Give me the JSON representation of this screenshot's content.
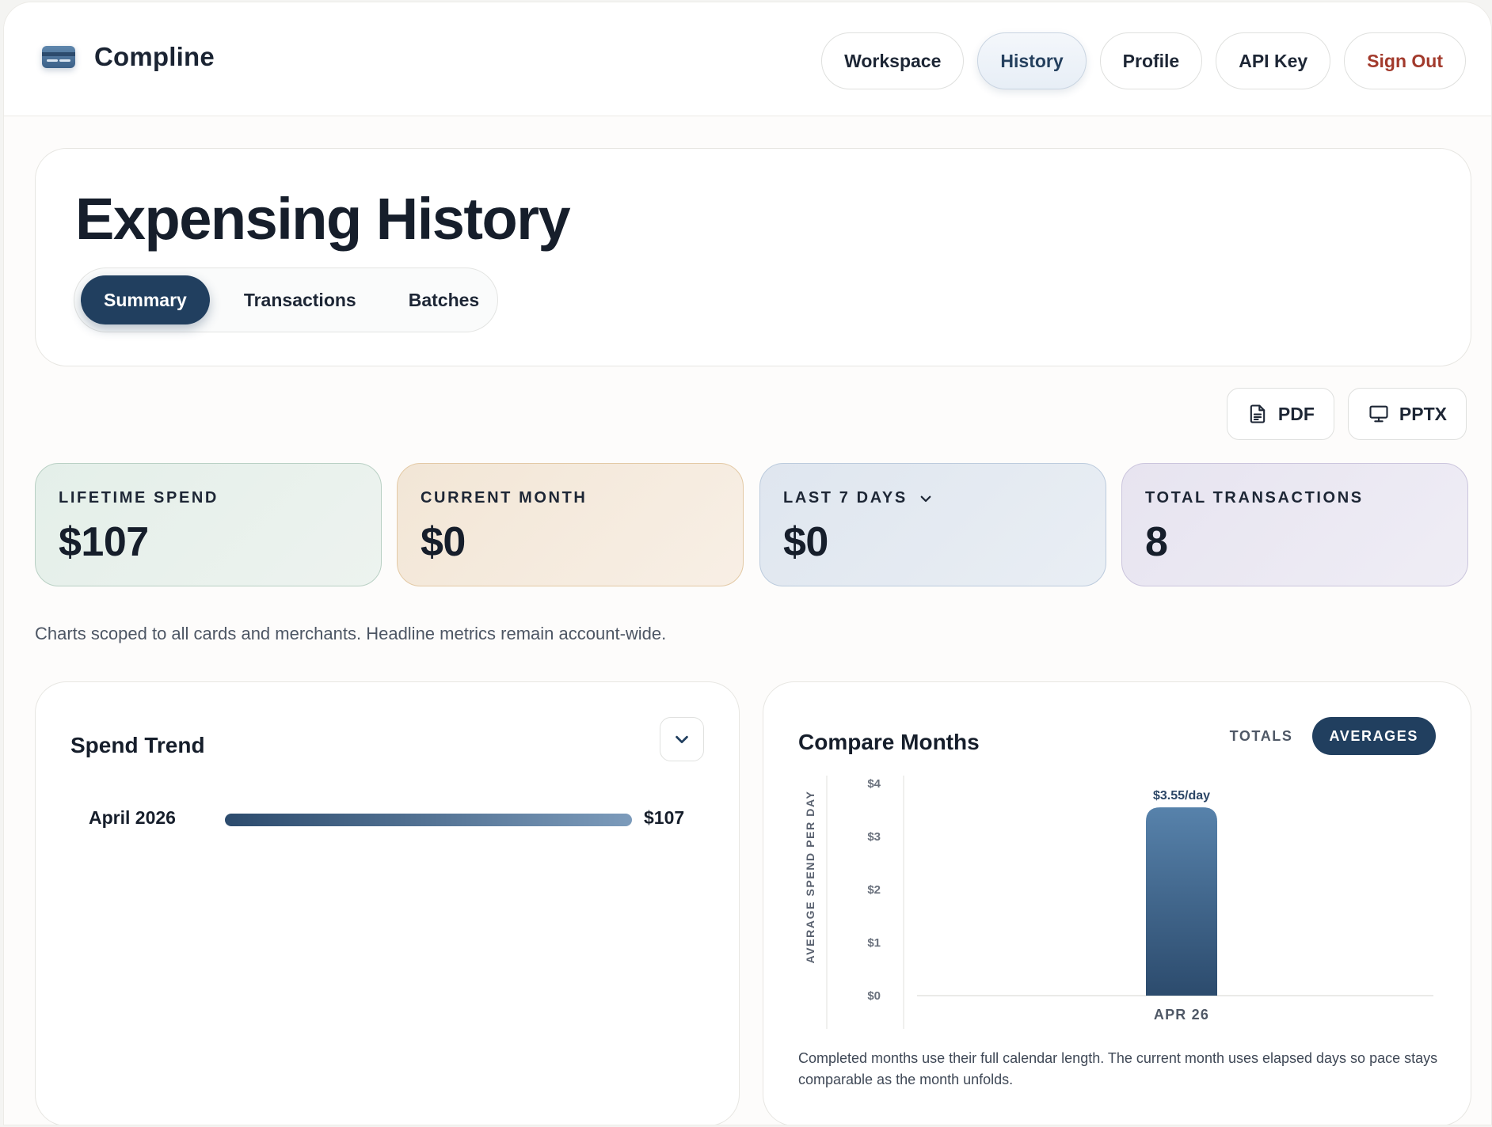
{
  "app": {
    "brand": "Compline",
    "nav": [
      {
        "label": "Workspace"
      },
      {
        "label": "History"
      },
      {
        "label": "Profile"
      },
      {
        "label": "API Key"
      },
      {
        "label": "Sign Out"
      }
    ]
  },
  "page": {
    "title": "Expensing History",
    "tabs": [
      {
        "label": "Summary",
        "active": true
      },
      {
        "label": "Transactions"
      },
      {
        "label": "Batches"
      }
    ],
    "export": {
      "pdf": "PDF",
      "pptx": "PPTX"
    },
    "metrics": [
      {
        "label": "LIFETIME SPEND",
        "value": "$107"
      },
      {
        "label": "CURRENT MONTH",
        "value": "$0"
      },
      {
        "label": "LAST 7 DAYS",
        "value": "$0"
      },
      {
        "label": "TOTAL TRANSACTIONS",
        "value": "8"
      }
    ],
    "note": "Charts scoped to all cards and merchants. Headline metrics remain account-wide."
  },
  "spend_trend": {
    "title": "Spend Trend",
    "rows": [
      {
        "label": "April 2026",
        "value": "$107",
        "fraction": 1.0
      }
    ]
  },
  "compare_months": {
    "title": "Compare Months",
    "toggle": {
      "totals": "TOTALS",
      "averages": "AVERAGES"
    },
    "footnote": "Completed months use their full calendar length. The current month uses elapsed days so pace stays comparable as the month unfolds."
  },
  "chart_data": {
    "type": "bar",
    "title": "Compare Months",
    "ylabel": "AVERAGE SPEND PER DAY",
    "xlabel": "",
    "categories": [
      "APR 26"
    ],
    "values": [
      3.55
    ],
    "data_labels": [
      "$3.55/day"
    ],
    "yticks": [
      "$0",
      "$1",
      "$2",
      "$3",
      "$4"
    ],
    "ylim": [
      0,
      4
    ],
    "grid": false,
    "bar_color": "#3d6389"
  }
}
